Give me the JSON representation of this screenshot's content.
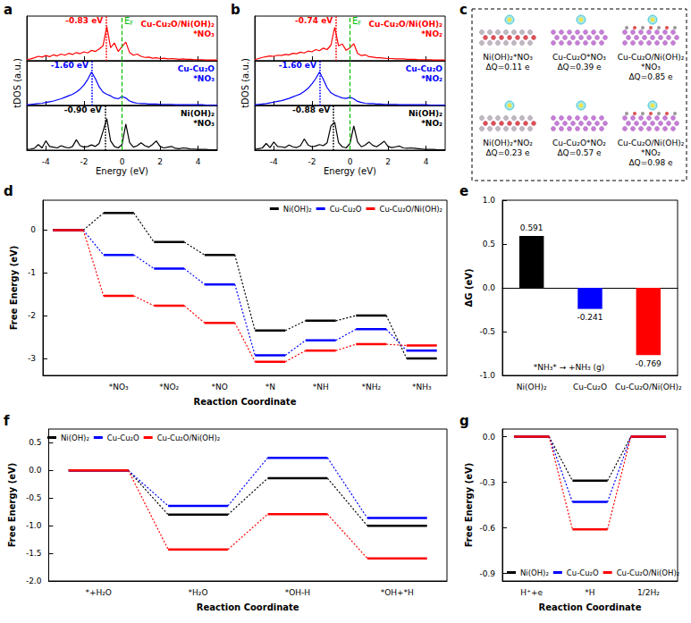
{
  "chart_data": [
    {
      "panel_label": "a",
      "type": "line",
      "xlabel": "Energy (eV)",
      "ylabel": "tDOS (a.u.)",
      "tick_labels": "x",
      "x": [
        -5,
        -4.8,
        -4.6,
        -4.4,
        -4.2,
        -4,
        -3.8,
        -3.6,
        -3.4,
        -3.2,
        -3,
        -2.8,
        -2.6,
        -2.4,
        -2.2,
        -2,
        -1.8,
        -1.6,
        -1.4,
        -1.2,
        -1,
        -0.8,
        -0.6,
        -0.4,
        -0.2,
        0,
        0.2,
        0.4,
        0.6,
        0.8,
        1,
        1.2,
        1.4,
        1.6,
        1.8,
        2,
        2.2,
        2.4,
        2.6,
        2.8,
        3,
        3.2,
        3.4,
        3.6,
        3.8,
        4,
        4.2,
        4.4,
        4.6,
        4.8,
        5
      ],
      "xlim": [
        -5,
        5
      ],
      "xticks": [
        -4,
        -2,
        0,
        2,
        4
      ],
      "ylim": [
        0,
        12
      ],
      "yticks": [],
      "fermi_level": {
        "value": 0,
        "label": "EF",
        "color": "#00c000",
        "line_style": "dashed"
      },
      "series": [
        {
          "name": "Cu-Cu₂O/Ni(OH)₂ *NO₃",
          "color": "#ff0000",
          "peak": -0.83,
          "peak_label": "-0.83 eV",
          "values": [
            0.3,
            0.5,
            0.8,
            1.2,
            1.0,
            1.4,
            1.1,
            1.6,
            1.3,
            1.8,
            1.5,
            2.0,
            1.7,
            2.2,
            1.9,
            2.4,
            2.1,
            2.8,
            2.5,
            3.2,
            4.0,
            9.2,
            3.5,
            4.8,
            2.5,
            3.8,
            5.0,
            2.2,
            1.5,
            1.8,
            1.2,
            0.9,
            1.0,
            0.7,
            0.8,
            0.6,
            0.7,
            0.5,
            0.6,
            0.5,
            0.4,
            0.5,
            0.4,
            0.4,
            0.3,
            0.3,
            0.3,
            0.2,
            0.2,
            0.2,
            0.2
          ]
        },
        {
          "name": "Cu-Cu₂O *NO₃",
          "color": "#0000ff",
          "peak": -1.6,
          "peak_label": "-1.60 eV",
          "values": [
            0.2,
            0.3,
            0.4,
            0.5,
            0.6,
            0.8,
            1.0,
            1.2,
            1.5,
            1.8,
            2.2,
            2.6,
            3.0,
            3.6,
            4.4,
            5.5,
            7.0,
            9.0,
            7.2,
            5.0,
            3.6,
            3.0,
            2.6,
            2.0,
            1.8,
            2.4,
            2.0,
            1.2,
            0.8,
            0.6,
            0.5,
            0.5,
            0.4,
            0.4,
            0.4,
            0.3,
            0.3,
            0.3,
            0.3,
            0.2,
            0.2,
            0.2,
            0.2,
            0.2,
            0.2,
            0.2,
            0.2,
            0.1,
            0.1,
            0.1,
            0.1
          ]
        },
        {
          "name": "Ni(OH)₂ *NO₃",
          "color": "#000000",
          "peak": -0.9,
          "peak_label": "-0.90 eV",
          "values": [
            0.2,
            0.3,
            0.5,
            1.5,
            0.6,
            2.5,
            1.0,
            0.8,
            0.6,
            1.2,
            0.8,
            0.6,
            1.0,
            2.8,
            1.2,
            0.8,
            1.0,
            1.4,
            1.0,
            1.8,
            5.0,
            8.5,
            2.5,
            1.0,
            0.6,
            1.5,
            7.0,
            2.0,
            0.8,
            1.2,
            2.0,
            1.2,
            0.8,
            1.5,
            2.5,
            1.0,
            0.6,
            0.8,
            1.0,
            0.5,
            0.4,
            0.6,
            0.5,
            0.3,
            0.3,
            0.2,
            0.2,
            0.2,
            0.1,
            0.1,
            0.1
          ]
        }
      ]
    },
    {
      "panel_label": "b",
      "type": "line",
      "xlabel": "Energy (eV)",
      "ylabel": "tDOS (a.u.)",
      "tick_labels": "x",
      "x": [
        -5,
        -4.8,
        -4.6,
        -4.4,
        -4.2,
        -4,
        -3.8,
        -3.6,
        -3.4,
        -3.2,
        -3,
        -2.8,
        -2.6,
        -2.4,
        -2.2,
        -2,
        -1.8,
        -1.6,
        -1.4,
        -1.2,
        -1,
        -0.8,
        -0.6,
        -0.4,
        -0.2,
        0,
        0.2,
        0.4,
        0.6,
        0.8,
        1,
        1.2,
        1.4,
        1.6,
        1.8,
        2,
        2.2,
        2.4,
        2.6,
        2.8,
        3,
        3.2,
        3.4,
        3.6,
        3.8,
        4,
        4.2,
        4.4,
        4.6,
        4.8,
        5
      ],
      "xlim": [
        -5,
        5
      ],
      "xticks": [
        -4,
        -2,
        0,
        2,
        4
      ],
      "ylim": [
        0,
        12
      ],
      "yticks": [],
      "fermi_level": {
        "value": 0,
        "label": "EF",
        "color": "#00c000",
        "line_style": "dashed"
      },
      "series": [
        {
          "name": "Cu-Cu₂O/Ni(OH)₂ *NO₂",
          "color": "#ff0000",
          "peak": -0.74,
          "peak_label": "-0.74 eV",
          "values": [
            0.3,
            0.6,
            0.9,
            1.1,
            1.3,
            1.2,
            1.5,
            1.4,
            1.7,
            1.6,
            2.0,
            1.9,
            2.3,
            2.1,
            2.6,
            2.4,
            3.0,
            2.7,
            3.4,
            3.0,
            4.2,
            9.0,
            4.0,
            4.5,
            2.8,
            3.5,
            4.6,
            2.0,
            1.4,
            1.6,
            1.1,
            1.0,
            0.8,
            0.8,
            0.7,
            0.6,
            0.6,
            0.5,
            0.5,
            0.5,
            0.4,
            0.4,
            0.4,
            0.3,
            0.3,
            0.3,
            0.3,
            0.2,
            0.2,
            0.2,
            0.2
          ]
        },
        {
          "name": "Cu-Cu₂O *NO₂",
          "color": "#0000ff",
          "peak": -1.6,
          "peak_label": "-1.60 eV",
          "values": [
            0.2,
            0.3,
            0.4,
            0.5,
            0.7,
            0.9,
            1.1,
            1.3,
            1.6,
            1.9,
            2.3,
            2.7,
            3.1,
            3.8,
            4.6,
            5.8,
            7.2,
            9.0,
            7.0,
            4.8,
            3.4,
            2.8,
            2.4,
            2.0,
            1.9,
            2.2,
            1.8,
            1.1,
            0.8,
            0.6,
            0.5,
            0.5,
            0.4,
            0.4,
            0.3,
            0.3,
            0.3,
            0.3,
            0.2,
            0.2,
            0.2,
            0.2,
            0.2,
            0.2,
            0.2,
            0.2,
            0.1,
            0.1,
            0.1,
            0.1,
            0.1
          ]
        },
        {
          "name": "Ni(OH)₂ *NO₂",
          "color": "#000000",
          "peak": -0.88,
          "peak_label": "-0.88 eV",
          "values": [
            0.2,
            0.4,
            0.6,
            1.8,
            0.7,
            2.2,
            1.0,
            0.9,
            0.7,
            1.4,
            0.9,
            0.7,
            1.2,
            3.0,
            1.4,
            0.9,
            1.1,
            1.5,
            1.2,
            2.0,
            6.5,
            7.5,
            2.0,
            0.9,
            0.6,
            1.8,
            6.5,
            2.2,
            0.9,
            1.4,
            2.2,
            1.3,
            0.9,
            1.6,
            2.4,
            1.0,
            0.7,
            0.9,
            1.1,
            0.6,
            0.5,
            0.6,
            0.5,
            0.4,
            0.3,
            0.2,
            0.2,
            0.2,
            0.1,
            0.1,
            0.1
          ]
        }
      ]
    },
    {
      "panel_label": "c",
      "type": "diagram",
      "items": [
        {
          "label": "Ni(OH)₂*NO₃",
          "charge": "ΔQ=0.11 e"
        },
        {
          "label": "Cu-Cu₂O*NO₃",
          "charge": "ΔQ=0.39 e"
        },
        {
          "label": "Cu-Cu₂O/Ni(OH)₂ *NO₃",
          "charge": "ΔQ=0.85 e"
        },
        {
          "label": "Ni(OH)₂*NO₂",
          "charge": "ΔQ=0.23 e"
        },
        {
          "label": "Cu-Cu₂O*NO₂",
          "charge": "ΔQ=0.57 e"
        },
        {
          "label": "Cu-Cu₂O/Ni(OH)₂ *NO₂",
          "charge": "ΔQ=0.98 e"
        }
      ]
    },
    {
      "panel_label": "d",
      "type": "free_energy",
      "xlabel": "Reaction Coordinate",
      "ylabel": "Free Energy (eV)",
      "categories": [
        null,
        "*NO₃",
        "*NO₂",
        "*NO",
        "*N",
        "*NH",
        "*NH₂",
        "*NH₃"
      ],
      "ylim": [
        -3.4,
        0.7
      ],
      "yticks": [
        -3,
        -2,
        -1,
        0
      ],
      "legend": "upper right",
      "series": [
        {
          "name": "Ni(OH)₂",
          "color": "#000000",
          "values": [
            0,
            0.4,
            -0.28,
            -0.58,
            -2.35,
            -2.12,
            -2.0,
            -3.0
          ]
        },
        {
          "name": "Cu-Cu₂O",
          "color": "#0000ff",
          "values": [
            0,
            -0.58,
            -0.9,
            -1.27,
            -2.93,
            -2.58,
            -2.32,
            -2.82
          ]
        },
        {
          "name": "Cu-Cu₂O/Ni(OH)₂",
          "color": "#ff0000",
          "values": [
            0,
            -1.54,
            -1.77,
            -2.17,
            -3.08,
            -2.82,
            -2.67,
            -2.7
          ]
        }
      ]
    },
    {
      "panel_label": "e",
      "type": "bar",
      "ylabel": "ΔG (eV)",
      "categories": [
        "Ni(OH)₂",
        "Cu-Cu₂O",
        "Cu-Cu₂O/Ni(OH)₂"
      ],
      "values": [
        0.591,
        -0.241,
        -0.769
      ],
      "colors": [
        "#000000",
        "#0000ff",
        "#ff0000"
      ],
      "ylim": [
        -1,
        1
      ],
      "yticks": [
        {
          "value": -1,
          "label": "-1.0"
        },
        -0.5,
        {
          "value": 0,
          "label": "0.0"
        },
        0.5,
        {
          "value": 1,
          "label": "1.0"
        }
      ],
      "data_labels": true,
      "annotation": "*NH₃* → +NH₃ (g)"
    },
    {
      "panel_label": "f",
      "type": "free_energy",
      "xlabel": "Reaction Coordinate",
      "ylabel": "Free Energy (eV)",
      "categories": [
        "*+H₂O",
        "*H₂O",
        "*OH-H",
        "*OH+*H"
      ],
      "ylim": [
        -2,
        0.75
      ],
      "yticks": [
        {
          "value": -2,
          "label": "-2.0"
        },
        -1.5,
        {
          "value": -1,
          "label": "-1.0"
        },
        -0.5,
        {
          "value": 0,
          "label": "0.0"
        },
        0.5
      ],
      "legend": "upper left",
      "series": [
        {
          "name": "Ni(OH)₂",
          "color": "#000000",
          "values": [
            0,
            -0.8,
            -0.14,
            -1.0
          ]
        },
        {
          "name": "Cu-Cu₂O",
          "color": "#0000ff",
          "values": [
            0,
            -0.64,
            0.23,
            -0.86
          ]
        },
        {
          "name": "Cu-Cu₂O/Ni(OH)₂",
          "color": "#ff0000",
          "values": [
            0,
            -1.43,
            -0.79,
            -1.59
          ]
        }
      ]
    },
    {
      "panel_label": "g",
      "type": "free_energy",
      "xlabel": "Reaction Coordinate",
      "ylabel": "Free Energy (eV)",
      "categories": [
        "H⁺+e",
        "*H",
        "1/2H₂"
      ],
      "ylim": [
        -0.95,
        0.05
      ],
      "yticks": [
        -0.9,
        -0.6,
        -0.3,
        {
          "value": 0,
          "label": "0.0"
        }
      ],
      "legend": "lower left",
      "series": [
        {
          "name": "Ni(OH)₂",
          "color": "#000000",
          "values": [
            0,
            -0.29,
            0
          ]
        },
        {
          "name": "Cu-Cu₂O",
          "color": "#0000ff",
          "values": [
            0,
            -0.43,
            0
          ]
        },
        {
          "name": "Cu-Cu₂O/Ni(OH)₂",
          "color": "#ff0000",
          "values": [
            0,
            -0.61,
            0
          ]
        }
      ]
    }
  ]
}
